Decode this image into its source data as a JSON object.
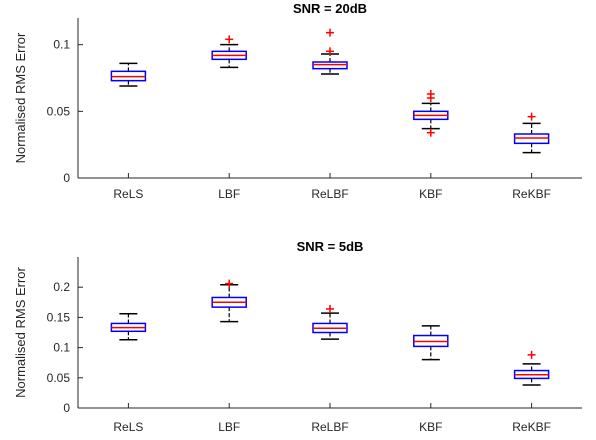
{
  "chart_data": [
    {
      "type": "boxplot",
      "title": "SNR = 20dB",
      "xlabel": "",
      "ylabel": "Normalised RMS Error",
      "categories": [
        "ReLS",
        "LBF",
        "ReLBF",
        "KBF",
        "ReKBF"
      ],
      "ylim": [
        0,
        0.12
      ],
      "yticks": [
        0,
        0.05,
        0.1
      ],
      "ytick_labels": [
        "0",
        "0.05",
        "0.1"
      ],
      "grid": false,
      "box_color": "#0000ff",
      "median_color": "#ff0000",
      "whisker_color": "#000000",
      "outlier_color": "#ff0000",
      "series": [
        {
          "category": "ReLS",
          "min": 0.069,
          "q1": 0.073,
          "median": 0.076,
          "q3": 0.08,
          "max": 0.086,
          "outliers": []
        },
        {
          "category": "LBF",
          "min": 0.083,
          "q1": 0.089,
          "median": 0.092,
          "q3": 0.095,
          "max": 0.1,
          "outliers": [
            0.104
          ]
        },
        {
          "category": "ReLBF",
          "min": 0.078,
          "q1": 0.082,
          "median": 0.085,
          "q3": 0.087,
          "max": 0.093,
          "outliers": [
            0.095,
            0.109
          ]
        },
        {
          "category": "KBF",
          "min": 0.037,
          "q1": 0.044,
          "median": 0.047,
          "q3": 0.05,
          "max": 0.056,
          "outliers": [
            0.034,
            0.06,
            0.063
          ]
        },
        {
          "category": "ReKBF",
          "min": 0.019,
          "q1": 0.026,
          "median": 0.03,
          "q3": 0.033,
          "max": 0.041,
          "outliers": [
            0.046
          ]
        }
      ]
    },
    {
      "type": "boxplot",
      "title": "SNR = 5dB",
      "xlabel": "",
      "ylabel": "Normalised RMS Error",
      "categories": [
        "ReLS",
        "LBF",
        "ReLBF",
        "KBF",
        "ReKBF"
      ],
      "ylim": [
        0,
        0.25
      ],
      "yticks": [
        0,
        0.05,
        0.1,
        0.15,
        0.2
      ],
      "ytick_labels": [
        "0",
        "0.05",
        "0.1",
        "0.15",
        "0.2"
      ],
      "grid": false,
      "box_color": "#0000ff",
      "median_color": "#ff0000",
      "whisker_color": "#000000",
      "outlier_color": "#ff0000",
      "series": [
        {
          "category": "ReLS",
          "min": 0.113,
          "q1": 0.127,
          "median": 0.133,
          "q3": 0.14,
          "max": 0.156,
          "outliers": []
        },
        {
          "category": "LBF",
          "min": 0.143,
          "q1": 0.167,
          "median": 0.175,
          "q3": 0.183,
          "max": 0.204,
          "outliers": [
            0.206
          ]
        },
        {
          "category": "ReLBF",
          "min": 0.114,
          "q1": 0.125,
          "median": 0.132,
          "q3": 0.14,
          "max": 0.157,
          "outliers": [
            0.164
          ]
        },
        {
          "category": "KBF",
          "min": 0.08,
          "q1": 0.102,
          "median": 0.11,
          "q3": 0.12,
          "max": 0.136,
          "outliers": []
        },
        {
          "category": "ReKBF",
          "min": 0.038,
          "q1": 0.049,
          "median": 0.055,
          "q3": 0.062,
          "max": 0.073,
          "outliers": [
            0.088
          ]
        }
      ]
    }
  ]
}
